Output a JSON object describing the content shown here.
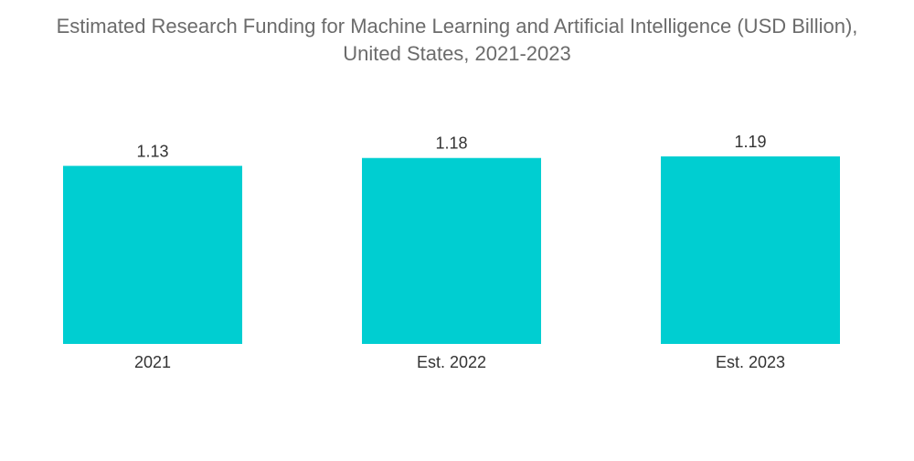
{
  "chart_data": {
    "type": "bar",
    "title_line1": "Estimated Research Funding for Machine Learning and Artificial Intelligence (USD Billion),",
    "title_line2": "United States, 2021-2023",
    "categories": [
      "2021",
      "Est. 2022",
      "Est. 2023"
    ],
    "values": [
      1.13,
      1.18,
      1.19
    ],
    "data_labels": [
      "1.13",
      "1.18",
      "1.19"
    ],
    "xlabel": "",
    "ylabel": "",
    "ylim": [
      0,
      1.19
    ],
    "grid": false,
    "legend": "none",
    "colors": {
      "bar": "#00ced1",
      "title": "#6b6b6b",
      "label": "#333333"
    }
  }
}
